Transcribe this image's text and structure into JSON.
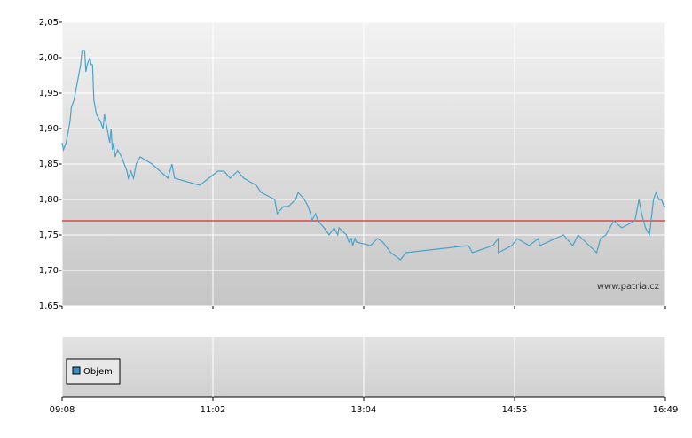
{
  "chart_data": {
    "type": "line",
    "color": "#4aa3cc",
    "x": [
      548,
      549,
      551,
      553,
      554,
      555,
      557,
      559,
      561,
      562,
      563,
      565,
      566,
      567,
      569,
      570,
      571,
      572,
      574,
      577,
      579,
      580,
      582,
      584,
      585,
      586,
      587,
      588,
      590,
      593,
      595,
      597,
      598,
      600,
      602,
      604,
      607,
      616,
      622,
      628,
      631,
      633,
      652,
      666,
      671,
      676,
      682,
      687,
      697,
      701,
      712,
      714,
      719,
      723,
      729,
      731,
      736,
      739,
      741,
      742,
      745,
      747,
      752,
      756,
      760,
      763,
      764,
      767,
      770,
      772,
      774,
      775,
      777,
      778,
      789,
      794,
      798,
      804,
      811,
      815,
      861,
      864,
      879,
      883,
      883,
      893,
      897,
      906,
      913,
      914,
      932,
      939,
      943,
      957,
      960,
      964,
      970,
      976,
      986,
      989,
      991,
      994,
      997,
      1000,
      1002,
      1004,
      1006,
      1008,
      1009
    ],
    "values": [
      1.88,
      1.87,
      1.88,
      1.9,
      1.91,
      1.93,
      1.94,
      1.96,
      1.98,
      1.99,
      2.01,
      2.01,
      1.98,
      1.99,
      2.0,
      1.99,
      1.99,
      1.94,
      1.92,
      1.91,
      1.9,
      1.92,
      1.9,
      1.88,
      1.9,
      1.87,
      1.88,
      1.86,
      1.87,
      1.86,
      1.85,
      1.84,
      1.83,
      1.84,
      1.83,
      1.85,
      1.86,
      1.85,
      1.84,
      1.83,
      1.85,
      1.83,
      1.82,
      1.84,
      1.84,
      1.83,
      1.84,
      1.83,
      1.82,
      1.81,
      1.8,
      1.78,
      1.79,
      1.79,
      1.8,
      1.81,
      1.8,
      1.79,
      1.78,
      1.77,
      1.78,
      1.77,
      1.76,
      1.75,
      1.76,
      1.75,
      1.76,
      1.755,
      1.75,
      1.74,
      1.745,
      1.735,
      1.745,
      1.74,
      1.735,
      1.745,
      1.74,
      1.725,
      1.715,
      1.725,
      1.735,
      1.725,
      1.735,
      1.745,
      1.725,
      1.735,
      1.745,
      1.735,
      1.745,
      1.735,
      1.75,
      1.735,
      1.75,
      1.725,
      1.745,
      1.75,
      1.77,
      1.76,
      1.77,
      1.8,
      1.78,
      1.76,
      1.75,
      1.8,
      1.81,
      1.8,
      1.8,
      1.79,
      1.79
    ],
    "ylim": [
      1.65,
      2.05
    ],
    "yticks": [
      {
        "value": 1.65,
        "label": "1,65"
      },
      {
        "value": 1.7,
        "label": "1,70"
      },
      {
        "value": 1.75,
        "label": "1,75"
      },
      {
        "value": 1.8,
        "label": "1,80"
      },
      {
        "value": 1.85,
        "label": "1,85"
      },
      {
        "value": 1.9,
        "label": "1,90"
      },
      {
        "value": 1.95,
        "label": "1,95"
      },
      {
        "value": 2.0,
        "label": "2,00"
      },
      {
        "value": 2.05,
        "label": "2,05"
      }
    ],
    "xlim": [
      548,
      1009
    ],
    "xticks": [
      {
        "value": 548,
        "label": "09:08"
      },
      {
        "value": 662,
        "label": "11:02"
      },
      {
        "value": 784,
        "label": "13:04"
      },
      {
        "value": 895,
        "label": "14:55"
      },
      {
        "value": 1009,
        "label": "16:49"
      }
    ],
    "reference_line": {
      "value": 1.77,
      "color": "#dd0000"
    },
    "grid": true,
    "watermark": "www.patria.cz",
    "volume_panel": {
      "legend": "Objem",
      "color": "#3a8fc4"
    }
  }
}
